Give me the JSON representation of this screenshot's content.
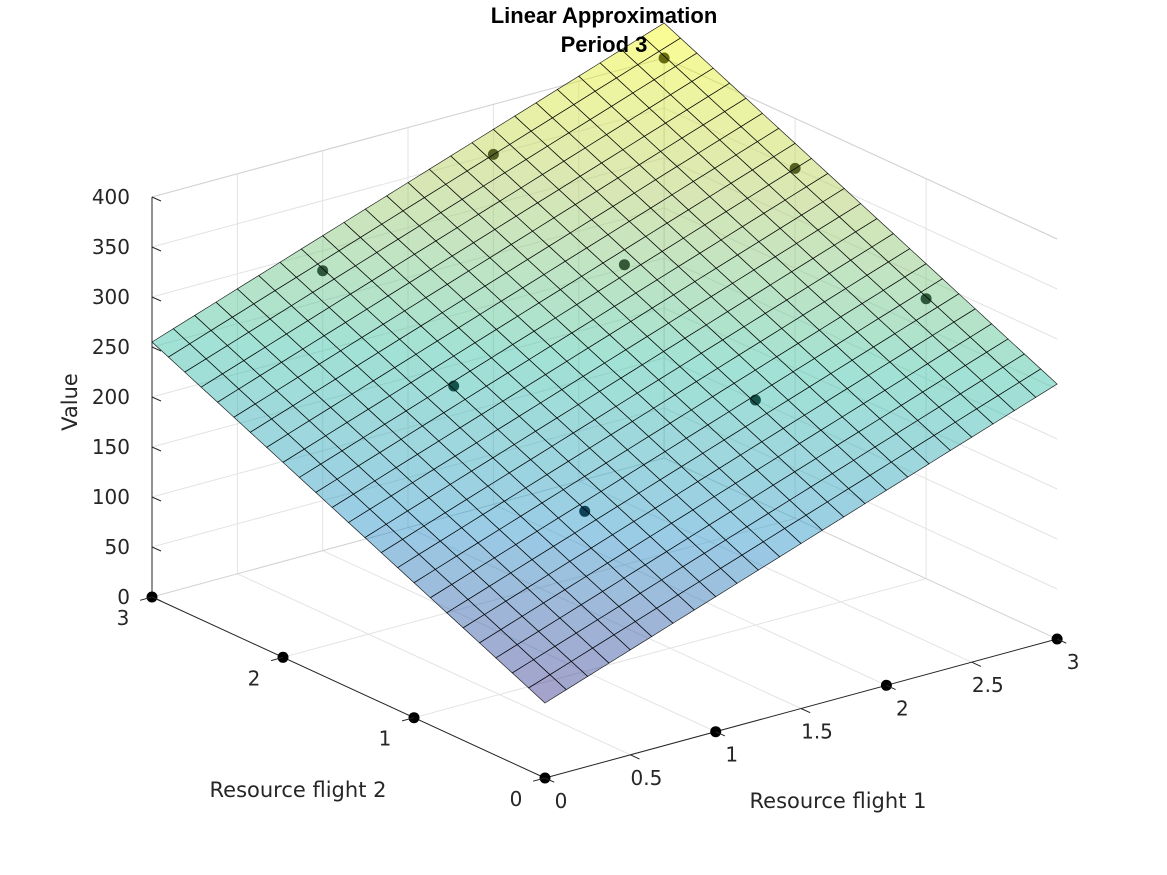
{
  "chart_data": {
    "type": "surface",
    "title": [
      "Linear Approximation",
      "Period 3"
    ],
    "xlabel": "Resource flight 1",
    "ylabel": "Resource flight 2",
    "zlabel": "Value",
    "xlim": [
      0,
      3
    ],
    "ylim": [
      0,
      3
    ],
    "zlim": [
      0,
      400
    ],
    "xticks": [
      "0",
      "0.5",
      "1",
      "1.5",
      "2",
      "2.5",
      "3"
    ],
    "yticks": [
      "0",
      "1",
      "2",
      "3"
    ],
    "zticks": [
      "0",
      "50",
      "100",
      "150",
      "200",
      "250",
      "300",
      "350",
      "400"
    ],
    "grid": true,
    "surface": {
      "model": "z = c0 + c1*x + c2*y",
      "c0": 75,
      "c1": 60,
      "c2": 60,
      "x_range": [
        0,
        3
      ],
      "y_range": [
        0,
        3
      ],
      "mesh_divisions": 24,
      "colormap": [
        "#352a87",
        "#1e8ec8",
        "#30bda1",
        "#a8c85a",
        "#f9fb0e"
      ],
      "face_alpha": 0.45
    },
    "series": [
      {
        "marker_color": "#000000",
        "points": [
          {
            "x": 0,
            "y": 0,
            "z": 0
          },
          {
            "x": 1,
            "y": 0,
            "z": 0
          },
          {
            "x": 2,
            "y": 0,
            "z": 0
          },
          {
            "x": 3,
            "y": 0,
            "z": 0
          },
          {
            "x": 0,
            "y": 1,
            "z": 0
          },
          {
            "x": 0,
            "y": 2,
            "z": 0
          },
          {
            "x": 0,
            "y": 3,
            "z": 0
          },
          {
            "x": 1,
            "y": 1,
            "z": 160
          },
          {
            "x": 1,
            "y": 2,
            "z": 225
          },
          {
            "x": 2,
            "y": 1,
            "z": 225
          },
          {
            "x": 2,
            "y": 2,
            "z": 300
          },
          {
            "x": 1,
            "y": 3,
            "z": 280
          },
          {
            "x": 3,
            "y": 1,
            "z": 280
          },
          {
            "x": 2,
            "y": 3,
            "z": 350
          },
          {
            "x": 3,
            "y": 2,
            "z": 350
          },
          {
            "x": 3,
            "y": 3,
            "z": 400
          }
        ]
      }
    ]
  }
}
